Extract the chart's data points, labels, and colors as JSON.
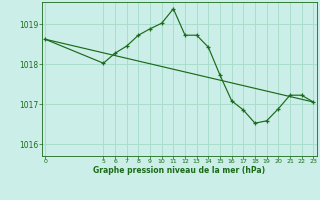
{
  "bg_color": "#cceee8",
  "line_color": "#1a6b1a",
  "grid_color": "#aaddcc",
  "xlabel": "Graphe pression niveau de la mer (hPa)",
  "ylim": [
    1015.7,
    1019.55
  ],
  "yticks": [
    1016,
    1017,
    1018,
    1019
  ],
  "xlim": [
    -0.3,
    23.3
  ],
  "xticks": [
    0,
    5,
    6,
    7,
    8,
    9,
    10,
    11,
    12,
    13,
    14,
    15,
    16,
    17,
    18,
    19,
    20,
    21,
    22,
    23
  ],
  "series1_x": [
    0,
    5,
    6,
    7,
    8,
    9,
    10,
    11,
    12,
    13,
    14,
    15,
    16,
    17,
    18,
    19,
    20,
    21,
    22,
    23
  ],
  "series1_y": [
    1018.62,
    1018.02,
    1018.27,
    1018.45,
    1018.72,
    1018.88,
    1019.02,
    1019.38,
    1018.72,
    1018.72,
    1018.42,
    1017.72,
    1017.08,
    1016.85,
    1016.52,
    1016.58,
    1016.88,
    1017.22,
    1017.22,
    1017.05
  ],
  "series2_x": [
    0,
    23
  ],
  "series2_y": [
    1018.62,
    1017.05
  ]
}
